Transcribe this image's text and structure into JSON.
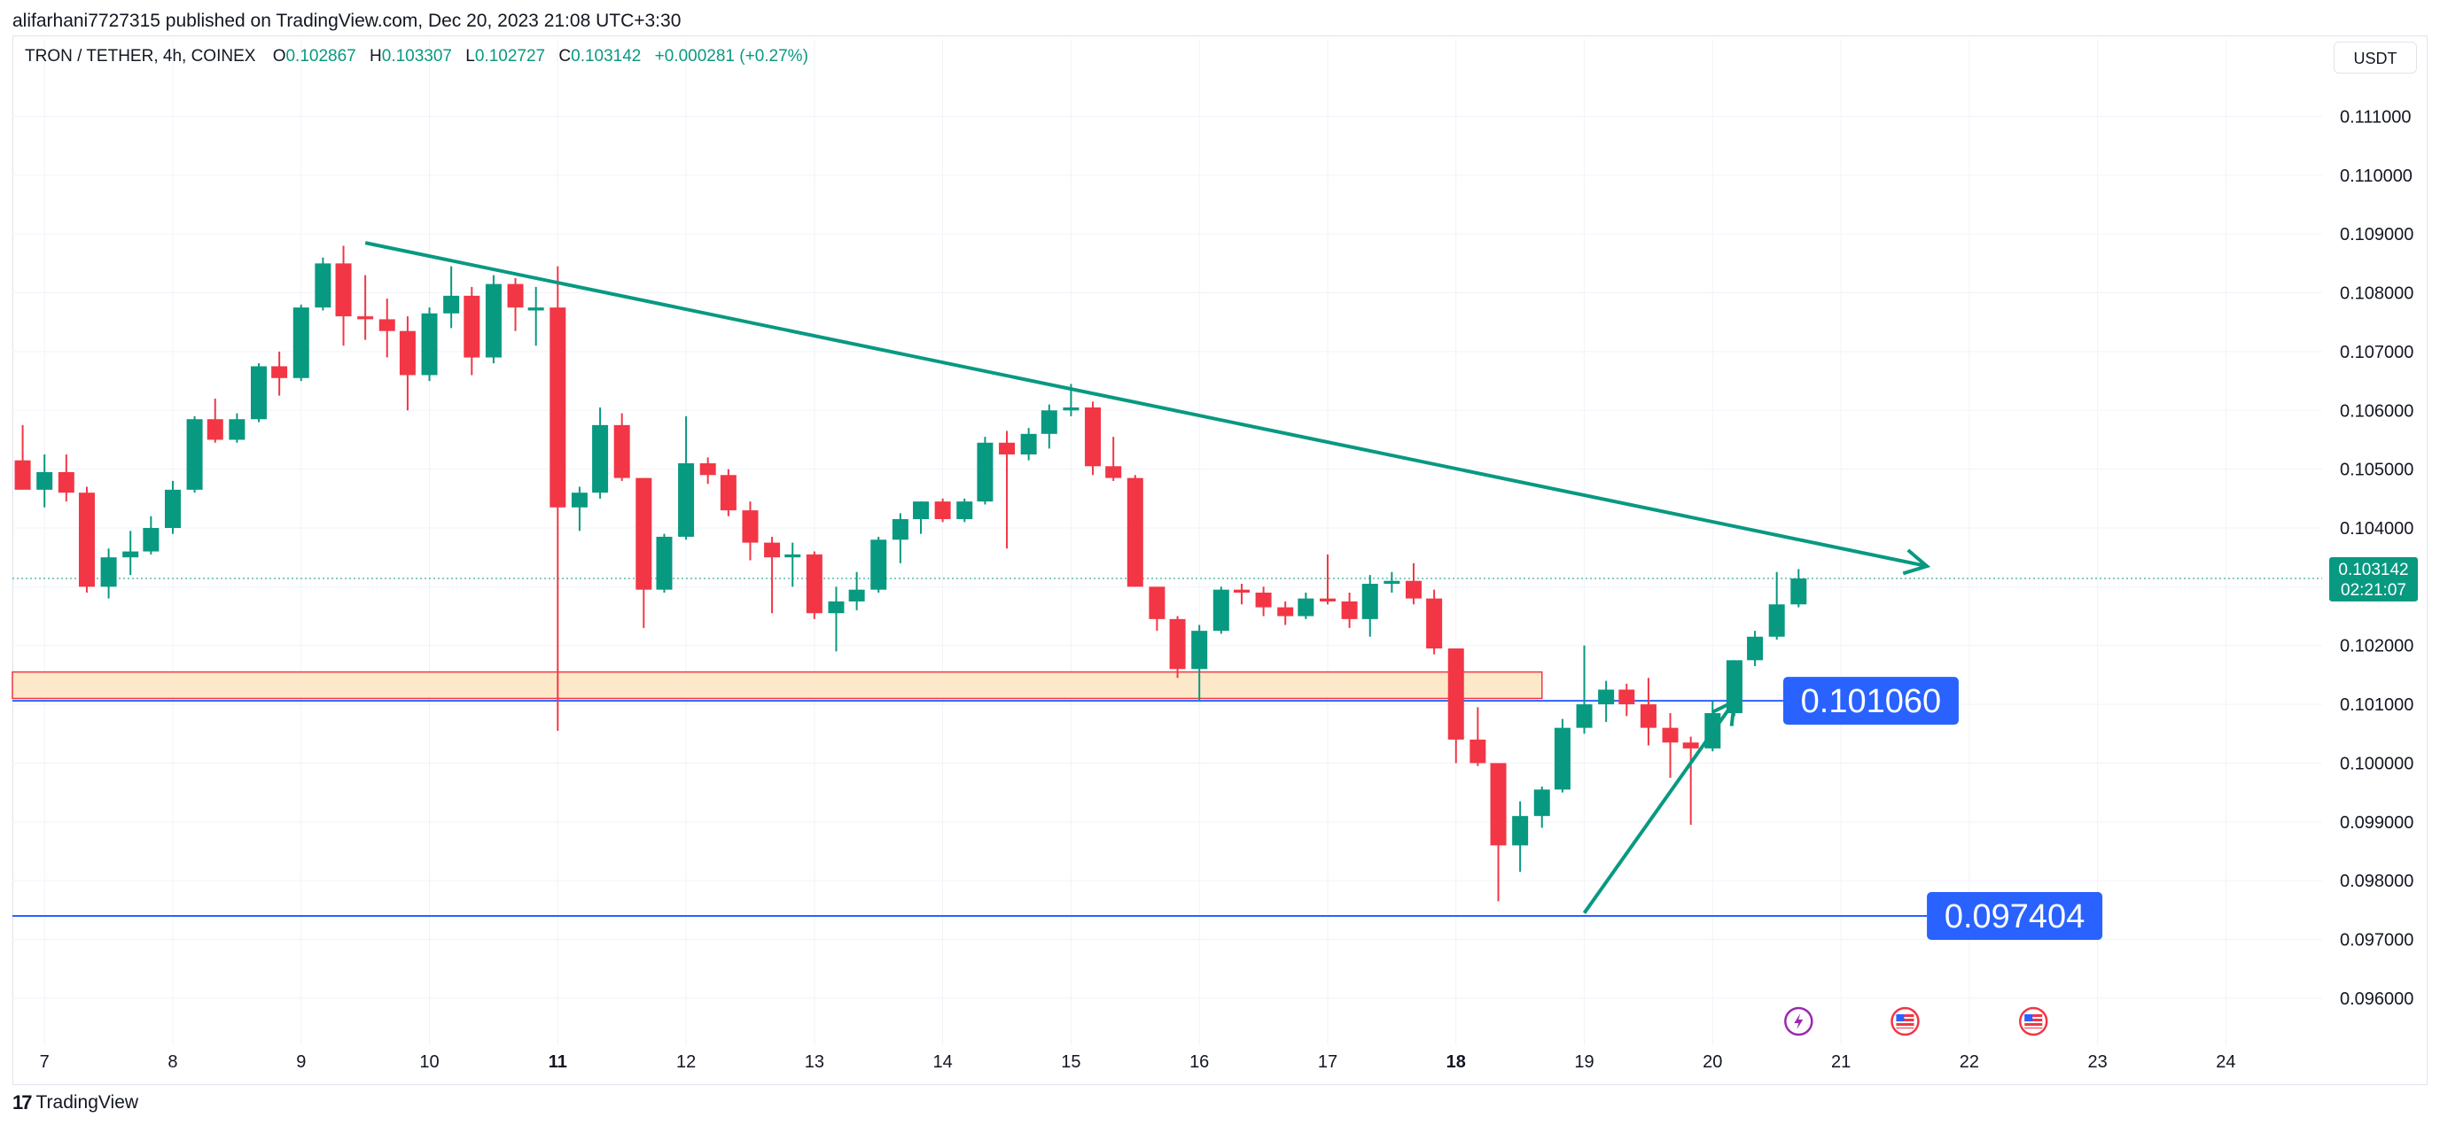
{
  "header": {
    "published_line": "alifarhani7727315 published on TradingView.com, Dec 20, 2023 21:08 UTC+3:30"
  },
  "legend": {
    "symbol": "TRON / TETHER, 4h, COINEX",
    "o_label": "O",
    "o_value": "0.102867",
    "h_label": "H",
    "h_value": "0.103307",
    "l_label": "L",
    "l_value": "0.102727",
    "c_label": "C",
    "c_value": "0.103142",
    "change": "+0.000281 (+0.27%)"
  },
  "currency_button": "USDT",
  "footer": {
    "brand": "TradingView"
  },
  "colors": {
    "up": "#089981",
    "down": "#f23645",
    "trend": "#089981",
    "support": "#2962ff",
    "zone_fill": "#fde5c4",
    "zone_border": "#f23645"
  },
  "chart_data": {
    "type": "candlestick",
    "title": "",
    "ylim": [
      0.0952,
      0.1117
    ],
    "y_ticks": [
      "0.111000",
      "0.110000",
      "0.109000",
      "0.108000",
      "0.107000",
      "0.106000",
      "0.105000",
      "0.104000",
      "0.103000",
      "0.102000",
      "0.101000",
      "0.100000",
      "0.099000",
      "0.098000",
      "0.097000",
      "0.096000"
    ],
    "y_tick_values": [
      0.111,
      0.11,
      0.109,
      0.108,
      0.107,
      0.106,
      0.105,
      0.104,
      0.103,
      0.102,
      0.101,
      0.1,
      0.099,
      0.098,
      0.097,
      0.096
    ],
    "x_ticks": [
      {
        "label": "7",
        "t": 7.0,
        "bold": false
      },
      {
        "label": "8",
        "t": 8.0,
        "bold": false
      },
      {
        "label": "9",
        "t": 9.0,
        "bold": false
      },
      {
        "label": "10",
        "t": 10.0,
        "bold": false
      },
      {
        "label": "11",
        "t": 11.0,
        "bold": true
      },
      {
        "label": "12",
        "t": 12.0,
        "bold": false
      },
      {
        "label": "13",
        "t": 13.0,
        "bold": false
      },
      {
        "label": "14",
        "t": 14.0,
        "bold": false
      },
      {
        "label": "15",
        "t": 15.0,
        "bold": false
      },
      {
        "label": "16",
        "t": 16.0,
        "bold": false
      },
      {
        "label": "17",
        "t": 17.0,
        "bold": false
      },
      {
        "label": "18",
        "t": 18.0,
        "bold": true
      },
      {
        "label": "19",
        "t": 19.0,
        "bold": false
      },
      {
        "label": "20",
        "t": 20.0,
        "bold": false
      },
      {
        "label": "21",
        "t": 21.0,
        "bold": false
      },
      {
        "label": "22",
        "t": 22.0,
        "bold": false
      },
      {
        "label": "23",
        "t": 23.0,
        "bold": false
      },
      {
        "label": "24",
        "t": 24.0,
        "bold": false
      }
    ],
    "xlim": [
      6.75,
      24.75
    ],
    "candles": [
      {
        "t": 6.83,
        "o": 0.10515,
        "h": 0.10575,
        "l": 0.10475,
        "c": 0.10465
      },
      {
        "t": 7.0,
        "o": 0.10465,
        "h": 0.10525,
        "l": 0.10435,
        "c": 0.10495
      },
      {
        "t": 7.17,
        "o": 0.10495,
        "h": 0.10525,
        "l": 0.10445,
        "c": 0.1046
      },
      {
        "t": 7.33,
        "o": 0.1046,
        "h": 0.1047,
        "l": 0.1029,
        "c": 0.103
      },
      {
        "t": 7.5,
        "o": 0.103,
        "h": 0.10365,
        "l": 0.1028,
        "c": 0.1035
      },
      {
        "t": 7.67,
        "o": 0.1035,
        "h": 0.10395,
        "l": 0.1032,
        "c": 0.1036
      },
      {
        "t": 7.83,
        "o": 0.1036,
        "h": 0.1042,
        "l": 0.10355,
        "c": 0.104
      },
      {
        "t": 8.0,
        "o": 0.104,
        "h": 0.1048,
        "l": 0.1039,
        "c": 0.10465
      },
      {
        "t": 8.17,
        "o": 0.10465,
        "h": 0.1059,
        "l": 0.1046,
        "c": 0.10585
      },
      {
        "t": 8.33,
        "o": 0.10585,
        "h": 0.1062,
        "l": 0.10545,
        "c": 0.1055
      },
      {
        "t": 8.5,
        "o": 0.1055,
        "h": 0.10595,
        "l": 0.10545,
        "c": 0.10585
      },
      {
        "t": 8.67,
        "o": 0.10585,
        "h": 0.1068,
        "l": 0.1058,
        "c": 0.10675
      },
      {
        "t": 8.83,
        "o": 0.10675,
        "h": 0.107,
        "l": 0.10625,
        "c": 0.10655
      },
      {
        "t": 9.0,
        "o": 0.10655,
        "h": 0.1078,
        "l": 0.1065,
        "c": 0.10775
      },
      {
        "t": 9.17,
        "o": 0.10775,
        "h": 0.1086,
        "l": 0.1077,
        "c": 0.1085
      },
      {
        "t": 9.33,
        "o": 0.1085,
        "h": 0.1088,
        "l": 0.1071,
        "c": 0.1076
      },
      {
        "t": 9.5,
        "o": 0.1076,
        "h": 0.1083,
        "l": 0.1072,
        "c": 0.10755
      },
      {
        "t": 9.67,
        "o": 0.10755,
        "h": 0.1079,
        "l": 0.1069,
        "c": 0.10735
      },
      {
        "t": 9.83,
        "o": 0.10735,
        "h": 0.1076,
        "l": 0.106,
        "c": 0.1066
      },
      {
        "t": 10.0,
        "o": 0.1066,
        "h": 0.10775,
        "l": 0.1065,
        "c": 0.10765
      },
      {
        "t": 10.17,
        "o": 0.10765,
        "h": 0.10845,
        "l": 0.1074,
        "c": 0.10795
      },
      {
        "t": 10.33,
        "o": 0.10795,
        "h": 0.1081,
        "l": 0.1066,
        "c": 0.1069
      },
      {
        "t": 10.5,
        "o": 0.1069,
        "h": 0.1083,
        "l": 0.1068,
        "c": 0.10815
      },
      {
        "t": 10.67,
        "o": 0.10815,
        "h": 0.10825,
        "l": 0.10735,
        "c": 0.10775
      },
      {
        "t": 10.83,
        "o": 0.1077,
        "h": 0.1081,
        "l": 0.1071,
        "c": 0.10775
      },
      {
        "t": 11.0,
        "o": 0.10775,
        "h": 0.10845,
        "l": 0.10055,
        "c": 0.10435
      },
      {
        "t": 11.17,
        "o": 0.10435,
        "h": 0.1047,
        "l": 0.10395,
        "c": 0.1046
      },
      {
        "t": 11.33,
        "o": 0.1046,
        "h": 0.10605,
        "l": 0.1045,
        "c": 0.10575
      },
      {
        "t": 11.5,
        "o": 0.10575,
        "h": 0.10595,
        "l": 0.1048,
        "c": 0.10485
      },
      {
        "t": 11.67,
        "o": 0.10485,
        "h": 0.10485,
        "l": 0.1023,
        "c": 0.10295
      },
      {
        "t": 11.83,
        "o": 0.10295,
        "h": 0.1039,
        "l": 0.1029,
        "c": 0.10385
      },
      {
        "t": 12.0,
        "o": 0.10385,
        "h": 0.1059,
        "l": 0.1038,
        "c": 0.1051
      },
      {
        "t": 12.17,
        "o": 0.1051,
        "h": 0.1052,
        "l": 0.10475,
        "c": 0.1049
      },
      {
        "t": 12.33,
        "o": 0.1049,
        "h": 0.105,
        "l": 0.1042,
        "c": 0.1043
      },
      {
        "t": 12.5,
        "o": 0.1043,
        "h": 0.10445,
        "l": 0.10345,
        "c": 0.10375
      },
      {
        "t": 12.67,
        "o": 0.10375,
        "h": 0.10385,
        "l": 0.10255,
        "c": 0.1035
      },
      {
        "t": 12.83,
        "o": 0.1035,
        "h": 0.10375,
        "l": 0.103,
        "c": 0.10355
      },
      {
        "t": 13.0,
        "o": 0.10355,
        "h": 0.1036,
        "l": 0.10245,
        "c": 0.10255
      },
      {
        "t": 13.17,
        "o": 0.10255,
        "h": 0.103,
        "l": 0.1019,
        "c": 0.10275
      },
      {
        "t": 13.33,
        "o": 0.10275,
        "h": 0.10325,
        "l": 0.1026,
        "c": 0.10295
      },
      {
        "t": 13.5,
        "o": 0.10295,
        "h": 0.10385,
        "l": 0.1029,
        "c": 0.1038
      },
      {
        "t": 13.67,
        "o": 0.1038,
        "h": 0.10425,
        "l": 0.1034,
        "c": 0.10415
      },
      {
        "t": 13.83,
        "o": 0.10415,
        "h": 0.10445,
        "l": 0.1039,
        "c": 0.10445
      },
      {
        "t": 14.0,
        "o": 0.10445,
        "h": 0.1045,
        "l": 0.1041,
        "c": 0.10415
      },
      {
        "t": 14.17,
        "o": 0.10415,
        "h": 0.1045,
        "l": 0.1041,
        "c": 0.10445
      },
      {
        "t": 14.33,
        "o": 0.10445,
        "h": 0.10555,
        "l": 0.1044,
        "c": 0.10545
      },
      {
        "t": 14.5,
        "o": 0.10545,
        "h": 0.10565,
        "l": 0.10365,
        "c": 0.10525
      },
      {
        "t": 14.67,
        "o": 0.10525,
        "h": 0.1057,
        "l": 0.10515,
        "c": 0.1056
      },
      {
        "t": 14.83,
        "o": 0.1056,
        "h": 0.1061,
        "l": 0.10535,
        "c": 0.106
      },
      {
        "t": 15.0,
        "o": 0.106,
        "h": 0.10645,
        "l": 0.1059,
        "c": 0.10605
      },
      {
        "t": 15.17,
        "o": 0.10605,
        "h": 0.10615,
        "l": 0.1049,
        "c": 0.10505
      },
      {
        "t": 15.33,
        "o": 0.10505,
        "h": 0.10555,
        "l": 0.1048,
        "c": 0.10485
      },
      {
        "t": 15.5,
        "o": 0.10485,
        "h": 0.1049,
        "l": 0.103,
        "c": 0.103
      },
      {
        "t": 15.67,
        "o": 0.103,
        "h": 0.103,
        "l": 0.10225,
        "c": 0.10245
      },
      {
        "t": 15.83,
        "o": 0.10245,
        "h": 0.1025,
        "l": 0.10145,
        "c": 0.1016
      },
      {
        "t": 16.0,
        "o": 0.1016,
        "h": 0.10235,
        "l": 0.10105,
        "c": 0.10225
      },
      {
        "t": 16.17,
        "o": 0.10225,
        "h": 0.103,
        "l": 0.1022,
        "c": 0.10295
      },
      {
        "t": 16.33,
        "o": 0.10295,
        "h": 0.10305,
        "l": 0.1027,
        "c": 0.1029
      },
      {
        "t": 16.5,
        "o": 0.1029,
        "h": 0.103,
        "l": 0.1025,
        "c": 0.10265
      },
      {
        "t": 16.67,
        "o": 0.10265,
        "h": 0.10275,
        "l": 0.10235,
        "c": 0.1025
      },
      {
        "t": 16.83,
        "o": 0.1025,
        "h": 0.1029,
        "l": 0.10245,
        "c": 0.1028
      },
      {
        "t": 17.0,
        "o": 0.1028,
        "h": 0.10355,
        "l": 0.1027,
        "c": 0.10275
      },
      {
        "t": 17.17,
        "o": 0.10275,
        "h": 0.1029,
        "l": 0.1023,
        "c": 0.10245
      },
      {
        "t": 17.33,
        "o": 0.10245,
        "h": 0.1032,
        "l": 0.10215,
        "c": 0.10305
      },
      {
        "t": 17.5,
        "o": 0.10305,
        "h": 0.10325,
        "l": 0.1029,
        "c": 0.1031
      },
      {
        "t": 17.67,
        "o": 0.1031,
        "h": 0.1034,
        "l": 0.1027,
        "c": 0.1028
      },
      {
        "t": 17.83,
        "o": 0.1028,
        "h": 0.10295,
        "l": 0.10185,
        "c": 0.10195
      },
      {
        "t": 18.0,
        "o": 0.10195,
        "h": 0.10195,
        "l": 0.1,
        "c": 0.1004
      },
      {
        "t": 18.17,
        "o": 0.1004,
        "h": 0.10095,
        "l": 0.09995,
        "c": 0.1
      },
      {
        "t": 18.33,
        "o": 0.1,
        "h": 0.1,
        "l": 0.09765,
        "c": 0.0986
      },
      {
        "t": 18.5,
        "o": 0.0986,
        "h": 0.09935,
        "l": 0.09815,
        "c": 0.0991
      },
      {
        "t": 18.67,
        "o": 0.0991,
        "h": 0.0996,
        "l": 0.0989,
        "c": 0.09955
      },
      {
        "t": 18.83,
        "o": 0.09955,
        "h": 0.10075,
        "l": 0.0995,
        "c": 0.1006
      },
      {
        "t": 19.0,
        "o": 0.1006,
        "h": 0.102,
        "l": 0.1005,
        "c": 0.101
      },
      {
        "t": 19.17,
        "o": 0.101,
        "h": 0.1014,
        "l": 0.1007,
        "c": 0.10125
      },
      {
        "t": 19.33,
        "o": 0.10125,
        "h": 0.10135,
        "l": 0.1008,
        "c": 0.101
      },
      {
        "t": 19.5,
        "o": 0.101,
        "h": 0.10145,
        "l": 0.1003,
        "c": 0.1006
      },
      {
        "t": 19.67,
        "o": 0.1006,
        "h": 0.10085,
        "l": 0.09975,
        "c": 0.10035
      },
      {
        "t": 19.83,
        "o": 0.10035,
        "h": 0.10045,
        "l": 0.09895,
        "c": 0.10025
      },
      {
        "t": 20.0,
        "o": 0.10025,
        "h": 0.10105,
        "l": 0.1002,
        "c": 0.10085
      },
      {
        "t": 20.17,
        "o": 0.10085,
        "h": 0.10175,
        "l": 0.1008,
        "c": 0.10175
      },
      {
        "t": 20.33,
        "o": 0.10175,
        "h": 0.10225,
        "l": 0.10165,
        "c": 0.10215
      },
      {
        "t": 20.5,
        "o": 0.10215,
        "h": 0.10325,
        "l": 0.1021,
        "c": 0.1027
      },
      {
        "t": 20.67,
        "o": 0.1027,
        "h": 0.1033,
        "l": 0.10265,
        "c": 0.10314
      }
    ],
    "trend_line": {
      "t1": 9.5,
      "p1": 0.10885,
      "t2": 21.67,
      "p2": 0.10335
    },
    "up_arrow": {
      "t1": 19.0,
      "p1": 0.09745,
      "t2": 20.17,
      "p2": 0.10105
    },
    "supply_zone": {
      "t1": 6.75,
      "t2": 18.67,
      "p_low": 0.1011,
      "p_high": 0.10155
    },
    "support_levels": [
      {
        "value": 0.10106,
        "label": "0.101060",
        "label_t": 20.55
      },
      {
        "value": 0.0974,
        "label": "0.097404",
        "label_t": 21.67
      }
    ],
    "last_price": {
      "value": 0.103142,
      "label": "0.103142",
      "countdown": "02:21:07"
    },
    "event_markers": [
      {
        "t": 20.67,
        "icon": "lightning-icon"
      },
      {
        "t": 21.5,
        "icon": "us-flag-icon"
      },
      {
        "t": 22.5,
        "icon": "us-flag-icon"
      }
    ]
  }
}
